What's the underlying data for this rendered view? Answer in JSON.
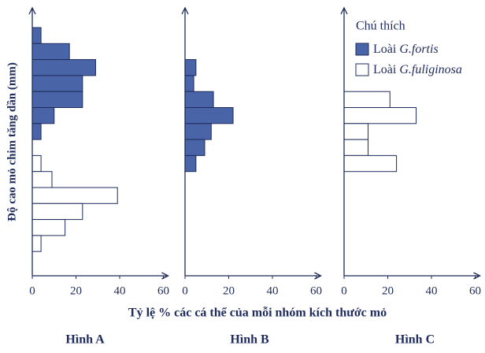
{
  "y_label": "Độ cao mỏ chim tăng dần (mm)",
  "x_label": "Tỷ lệ % các cá thể của mỗi nhóm kích thước mỏ",
  "chart_data": [
    {
      "type": "bar",
      "title": "Hình A",
      "categories": [
        null,
        null,
        null,
        null,
        null,
        null,
        null,
        null,
        null,
        null,
        null,
        null,
        null,
        null
      ],
      "xlim": [
        0,
        60
      ],
      "xticks": [
        0,
        20,
        40,
        60
      ],
      "series": [
        {
          "color": "#4a64a8",
          "values": [
            4,
            17,
            29,
            23,
            23,
            10,
            4,
            null,
            null,
            null,
            null,
            null,
            null,
            null
          ]
        },
        {
          "color": "#ffffff",
          "values": [
            null,
            null,
            null,
            null,
            null,
            null,
            null,
            null,
            4,
            9,
            39,
            23,
            15,
            4
          ]
        }
      ]
    },
    {
      "type": "bar",
      "title": "Hình B",
      "categories": [
        null,
        null,
        null,
        null,
        null,
        null,
        null,
        null,
        null,
        null,
        null,
        null,
        null,
        null
      ],
      "xlim": [
        0,
        60
      ],
      "xticks": [
        0,
        20,
        40,
        60
      ],
      "series": [
        {
          "color": "#4a64a8",
          "values": [
            null,
            null,
            5,
            4,
            13,
            22,
            12,
            9,
            5,
            null,
            null,
            null,
            null,
            null
          ]
        }
      ]
    },
    {
      "type": "bar",
      "title": "Hình C",
      "categories": [
        null,
        null,
        null,
        null,
        null,
        null,
        null,
        null,
        null,
        null,
        null,
        null,
        null,
        null
      ],
      "xlim": [
        0,
        60
      ],
      "xticks": [
        0,
        20,
        40,
        60
      ],
      "legend_title": "Chú thích",
      "series": [
        {
          "name": "Loài G.fortis",
          "color": "#4a64a8",
          "values": [
            null,
            null,
            null,
            null,
            null,
            null,
            null,
            null,
            null,
            null,
            null,
            null,
            null,
            null
          ]
        },
        {
          "name": "Loài G.fuliginosa",
          "color": "#ffffff",
          "values": [
            null,
            null,
            null,
            null,
            21,
            33,
            11,
            11,
            24,
            null,
            null,
            null,
            null,
            null
          ]
        }
      ]
    }
  ]
}
